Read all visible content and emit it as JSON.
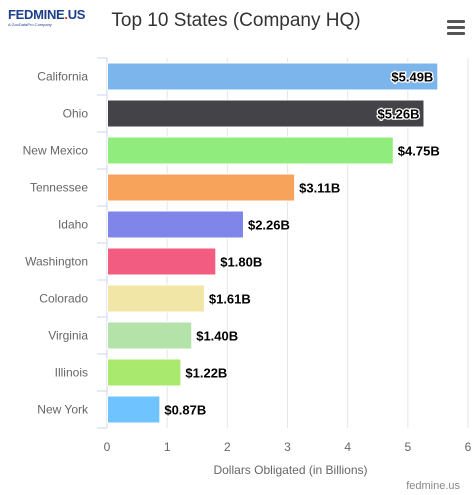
{
  "logo": {
    "text": "FEDMINE",
    "dot": ".",
    "suffix": "US",
    "tagline": "A GovDataPro Company"
  },
  "menu": {
    "icon": "hamburger-menu-icon"
  },
  "credit": "fedmine.us",
  "chart_data": {
    "type": "bar",
    "orientation": "horizontal",
    "title": "Top 10 States (Company HQ)",
    "xlabel": "Dollars Obligated (in Billions)",
    "ylabel": "",
    "xlim": [
      0,
      6
    ],
    "xticks": [
      "0",
      "1",
      "2",
      "3",
      "4",
      "5",
      "6"
    ],
    "grid": true,
    "categories": [
      "California",
      "Ohio",
      "New Mexico",
      "Tennessee",
      "Idaho",
      "Washington",
      "Colorado",
      "Virginia",
      "Illinois",
      "New York"
    ],
    "values": [
      5.49,
      5.26,
      4.75,
      3.11,
      2.26,
      1.8,
      1.61,
      1.4,
      1.22,
      0.87
    ],
    "data_labels": [
      "$5.49B",
      "$5.26B",
      "$4.75B",
      "$3.11B",
      "$2.26B",
      "$1.80B",
      "$1.61B",
      "$1.40B",
      "$1.22B",
      "$0.87B"
    ],
    "colors": [
      "#7cb5ec",
      "#434348",
      "#90ed7d",
      "#f7a35c",
      "#8085e9",
      "#f15c80",
      "#f1e6a6",
      "#b3e3a8",
      "#a9ea6e",
      "#6fc4ff"
    ]
  }
}
